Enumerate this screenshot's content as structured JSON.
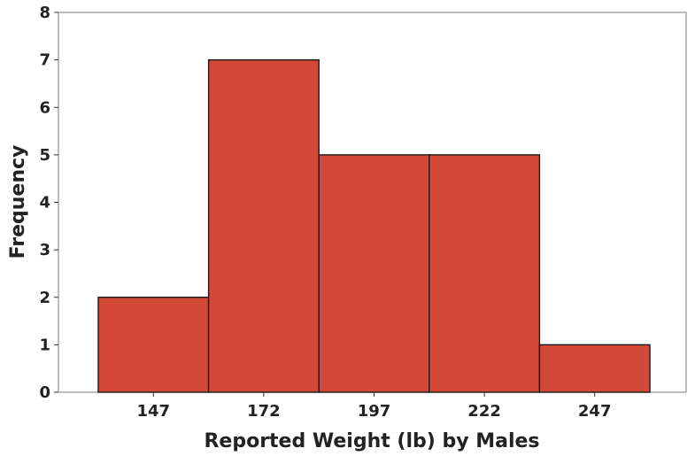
{
  "chart_data": {
    "type": "bar",
    "title": "",
    "xlabel": "Reported Weight (lb) by Males",
    "ylabel": "Frequency",
    "categories": [
      "147",
      "172",
      "197",
      "222",
      "247"
    ],
    "values": [
      2,
      7,
      5,
      5,
      1
    ],
    "ylim": [
      0,
      8
    ],
    "yticks": [
      "0",
      "1",
      "2",
      "3",
      "4",
      "5",
      "6",
      "7",
      "8"
    ],
    "grid": false,
    "legend": "none",
    "bar_color": "#d44838"
  }
}
